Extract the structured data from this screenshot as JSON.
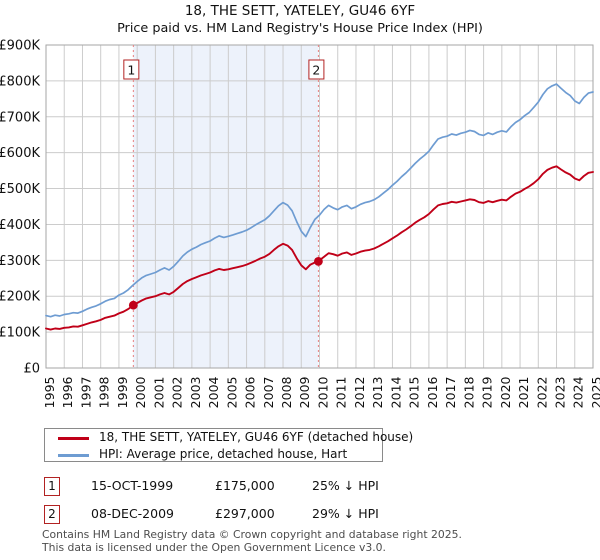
{
  "header": {
    "title": "18, THE SETT, YATELEY, GU46 6YF",
    "subtitle": "Price paid vs. HM Land Registry's House Price Index (HPI)"
  },
  "legend": {
    "items": [
      {
        "label": "18, THE SETT, YATELEY, GU46 6YF (detached house)",
        "color": "#c00018"
      },
      {
        "label": "HPI: Average price, detached house, Hart",
        "color": "#6e9cd2"
      }
    ]
  },
  "sales_table": [
    {
      "num": "1",
      "date": "15-OCT-1999",
      "price": "£175,000",
      "pct": "25% ↓ HPI"
    },
    {
      "num": "2",
      "date": "08-DEC-2009",
      "price": "£297,000",
      "pct": "29% ↓ HPI"
    }
  ],
  "footer": {
    "line1": "Contains HM Land Registry data © Crown copyright and database right 2025.",
    "line2": "This data is licensed under the Open Government Licence v3.0."
  },
  "chart_data": {
    "type": "line",
    "title": "18, THE SETT, YATELEY, GU46 6YF",
    "subtitle": "Price paid vs. HM Land Registry's House Price Index (HPI)",
    "ylabel": "",
    "xlabel": "",
    "ylim_k": [
      0,
      900
    ],
    "ytick_step_k": 100,
    "ytick_labels": [
      "£0",
      "£100K",
      "£200K",
      "£300K",
      "£400K",
      "£500K",
      "£600K",
      "£700K",
      "£800K",
      "£900K"
    ],
    "x_years": [
      1995,
      1996,
      1997,
      1998,
      1999,
      2000,
      2001,
      2002,
      2003,
      2004,
      2005,
      2006,
      2007,
      2008,
      2009,
      2010,
      2011,
      2012,
      2013,
      2014,
      2015,
      2016,
      2017,
      2018,
      2019,
      2020,
      2021,
      2022,
      2023,
      2024,
      2025
    ],
    "grid": true,
    "shaded_band": {
      "x_from": 1999.79,
      "x_to": 2009.94,
      "color": "#edf2fb"
    },
    "x_start": 1995,
    "x_step": 0.25,
    "series": [
      {
        "name": "HPI: Average price, detached house, Hart",
        "color": "#6e9cd2",
        "width": 1.7,
        "values_k": [
          146,
          143,
          147,
          145,
          149,
          151,
          154,
          153,
          158,
          164,
          169,
          173,
          179,
          186,
          191,
          194,
          203,
          209,
          218,
          230,
          241,
          251,
          258,
          262,
          266,
          273,
          279,
          273,
          283,
          297,
          312,
          323,
          331,
          337,
          344,
          349,
          354,
          362,
          368,
          364,
          367,
          371,
          375,
          379,
          384,
          391,
          399,
          406,
          413,
          424,
          438,
          452,
          461,
          454,
          438,
          408,
          381,
          366,
          392,
          414,
          426,
          442,
          453,
          446,
          441,
          449,
          453,
          444,
          449,
          456,
          461,
          464,
          469,
          477,
          487,
          497,
          509,
          520,
          533,
          544,
          557,
          570,
          582,
          592,
          604,
          622,
          638,
          643,
          646,
          652,
          649,
          654,
          657,
          662,
          659,
          651,
          648,
          655,
          651,
          657,
          661,
          658,
          672,
          684,
          692,
          703,
          712,
          726,
          741,
          762,
          778,
          786,
          791,
          779,
          768,
          759,
          744,
          737,
          754,
          766,
          769
        ]
      },
      {
        "name": "18, THE SETT, YATELEY, GU46 6YF (detached house)",
        "color": "#c00018",
        "width": 1.9,
        "values_k": [
          110,
          107,
          110,
          109,
          112,
          113,
          116,
          115,
          119,
          123,
          127,
          130,
          134,
          140,
          143,
          146,
          152,
          157,
          164,
          173,
          181,
          188,
          194,
          197,
          200,
          205,
          209,
          205,
          212,
          223,
          234,
          242,
          248,
          253,
          258,
          262,
          266,
          272,
          276,
          273,
          275,
          278,
          281,
          284,
          288,
          293,
          299,
          305,
          310,
          318,
          329,
          339,
          346,
          341,
          329,
          306,
          286,
          275,
          288,
          294,
          300,
          310,
          320,
          317,
          313,
          319,
          322,
          315,
          319,
          324,
          327,
          329,
          333,
          339,
          346,
          353,
          361,
          369,
          378,
          386,
          395,
          405,
          413,
          420,
          429,
          442,
          453,
          457,
          459,
          463,
          461,
          464,
          467,
          470,
          468,
          462,
          460,
          465,
          462,
          466,
          469,
          467,
          477,
          486,
          491,
          499,
          506,
          515,
          526,
          541,
          552,
          558,
          562,
          553,
          545,
          539,
          528,
          523,
          535,
          544,
          546
        ]
      }
    ],
    "sale_markers": [
      {
        "label": "1",
        "x": 1999.79,
        "value_k": 175,
        "date": "15-OCT-1999",
        "price": "£175,000",
        "pct_vs_hpi": "25% ↓ HPI"
      },
      {
        "label": "2",
        "x": 2009.94,
        "value_k": 297,
        "date": "08-DEC-2009",
        "price": "£297,000",
        "pct_vs_hpi": "29% ↓ HPI"
      }
    ],
    "marker_line_color": "#e88080",
    "grid_color": "#cccccc",
    "border_color": "#a6a6a6"
  }
}
